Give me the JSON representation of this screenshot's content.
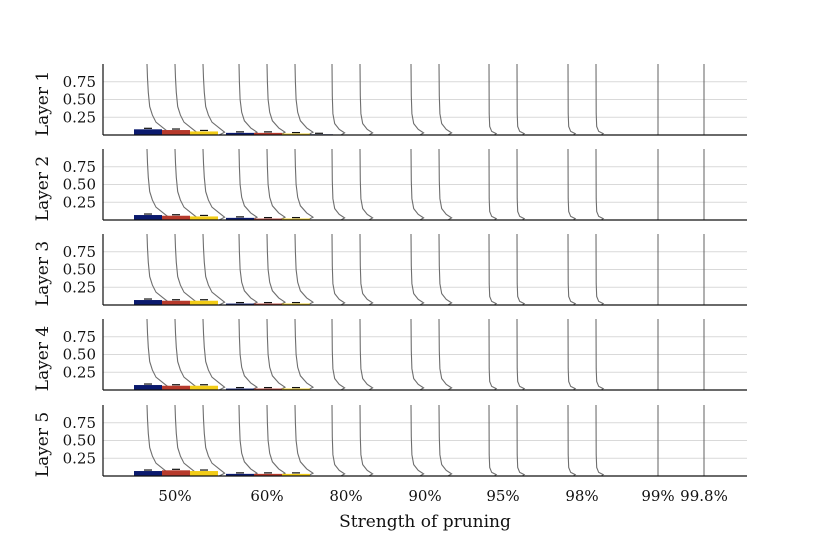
{
  "chart_data": {
    "type": "bar",
    "title": "",
    "xlabel": "Strength of pruning",
    "ylabel": "",
    "panels": [
      "Layer 1",
      "Layer 2",
      "Layer 3",
      "Layer 4",
      "Layer 5"
    ],
    "categories": [
      "50%",
      "60%",
      "80%",
      "90%",
      "95%",
      "98%",
      "99%",
      "99.8%"
    ],
    "yticks": [
      0.25,
      0.5,
      0.75
    ],
    "yticklabels": [
      "0.25",
      "0.50",
      "0.75"
    ],
    "ylim": [
      0,
      1.0
    ],
    "grid": true,
    "legend": "none",
    "colors": {
      "series": [
        "#0b1a6e",
        "#b73a2c",
        "#f2cc17"
      ],
      "violin": "#6e6e6e",
      "grid": "#d9d9d9",
      "axis": "#111111",
      "errorbar": "#111111"
    },
    "series": [
      {
        "values": [
          [
            0.08,
            0.03,
            0.01,
            0.0,
            0.0,
            0.0,
            0.0,
            0.0
          ],
          [
            0.07,
            0.03,
            0.0,
            0.0,
            0.0,
            0.0,
            0.0,
            0.0
          ],
          [
            0.07,
            0.02,
            0.0,
            0.0,
            0.0,
            0.0,
            0.0,
            0.0
          ],
          [
            0.07,
            0.02,
            0.0,
            0.0,
            0.0,
            0.0,
            0.0,
            0.0
          ],
          [
            0.07,
            0.03,
            0.0,
            0.0,
            0.0,
            0.0,
            0.0,
            0.0
          ]
        ]
      },
      {
        "values": [
          [
            0.07,
            0.03,
            0.0,
            0.0,
            0.0,
            0.0,
            0.0,
            0.0
          ],
          [
            0.06,
            0.02,
            0.0,
            0.0,
            0.0,
            0.0,
            0.0,
            0.0
          ],
          [
            0.06,
            0.02,
            0.0,
            0.0,
            0.0,
            0.0,
            0.0,
            0.0
          ],
          [
            0.06,
            0.02,
            0.0,
            0.0,
            0.0,
            0.0,
            0.0,
            0.0
          ],
          [
            0.08,
            0.03,
            0.0,
            0.0,
            0.0,
            0.0,
            0.0,
            0.0
          ]
        ]
      },
      {
        "values": [
          [
            0.05,
            0.02,
            0.0,
            0.0,
            0.0,
            0.0,
            0.0,
            0.0
          ],
          [
            0.05,
            0.02,
            0.0,
            0.0,
            0.0,
            0.0,
            0.0,
            0.0
          ],
          [
            0.06,
            0.02,
            0.0,
            0.0,
            0.0,
            0.0,
            0.0,
            0.0
          ],
          [
            0.06,
            0.02,
            0.0,
            0.0,
            0.0,
            0.0,
            0.0,
            0.0
          ],
          [
            0.07,
            0.03,
            0.0,
            0.0,
            0.0,
            0.0,
            0.0,
            0.0
          ]
        ]
      }
    ]
  }
}
